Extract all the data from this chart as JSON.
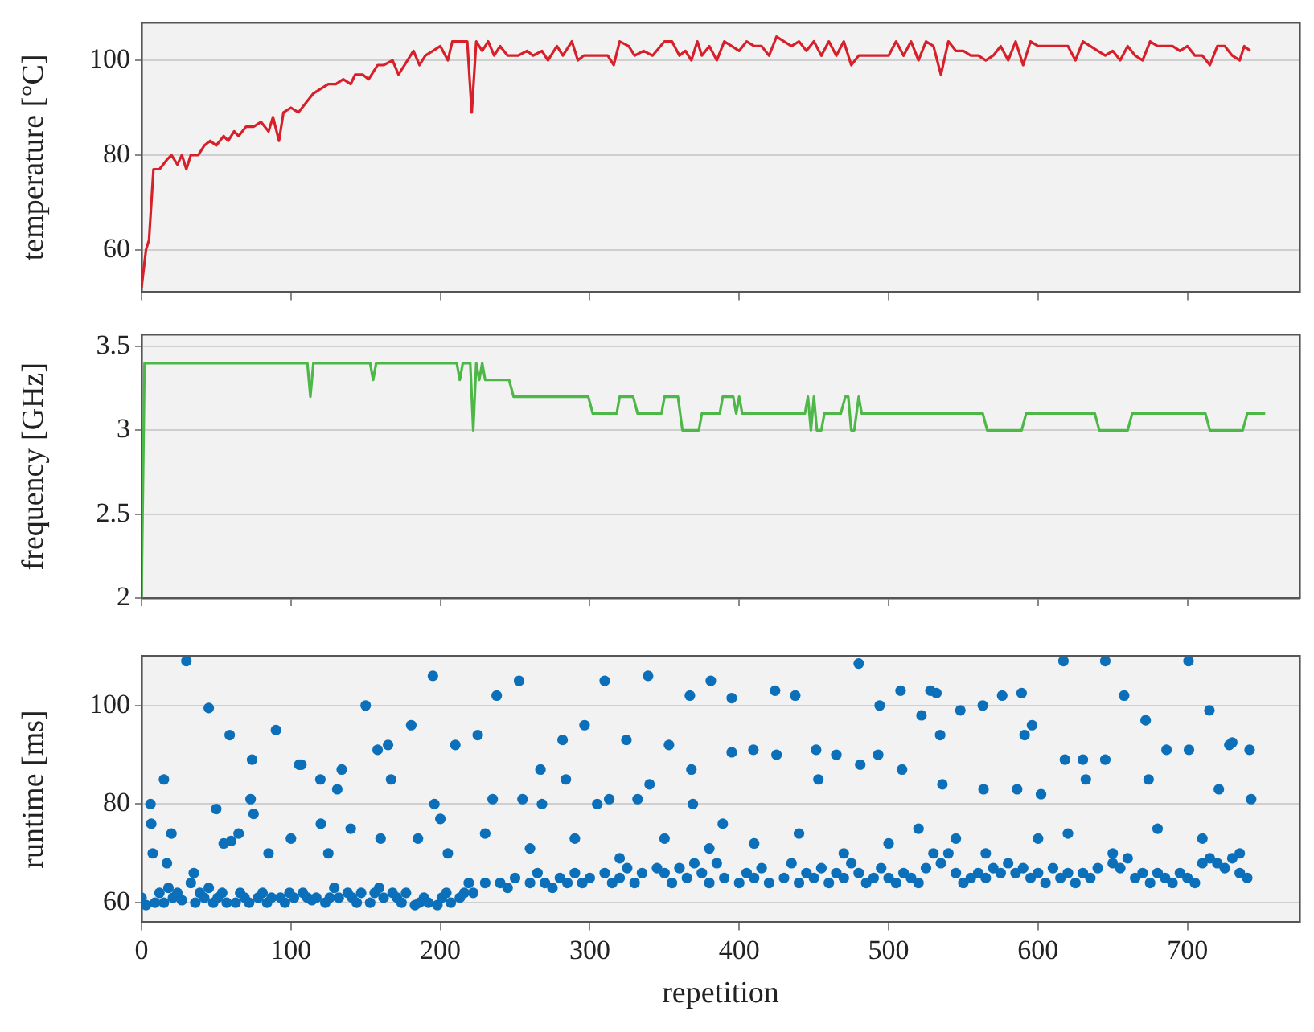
{
  "chart_data": [
    {
      "type": "line",
      "ylabel": "temperature [°C]",
      "xlim": [
        0,
        775
      ],
      "xticks": [
        0,
        100,
        200,
        300,
        400,
        500,
        600,
        700
      ],
      "ylim": [
        51,
        108
      ],
      "yticks": [
        60,
        80,
        100
      ],
      "grid": "y",
      "tick_labels": "y",
      "series": [
        {
          "color": "#d7202a",
          "x": [
            0,
            3,
            5,
            8,
            12,
            17,
            20,
            24,
            27,
            30,
            33,
            38,
            42,
            46,
            50,
            55,
            58,
            62,
            65,
            70,
            75,
            80,
            85,
            88,
            92,
            95,
            100,
            105,
            110,
            115,
            120,
            125,
            130,
            135,
            140,
            143,
            148,
            152,
            158,
            162,
            168,
            172,
            178,
            182,
            186,
            190,
            195,
            200,
            205,
            208,
            215,
            218,
            221,
            224,
            228,
            232,
            236,
            240,
            245,
            252,
            258,
            262,
            268,
            272,
            278,
            282,
            288,
            292,
            296,
            305,
            312,
            316,
            320,
            326,
            330,
            336,
            342,
            350,
            355,
            360,
            364,
            368,
            372,
            375,
            380,
            385,
            390,
            395,
            400,
            405,
            410,
            415,
            420,
            425,
            430,
            435,
            440,
            445,
            450,
            455,
            460,
            465,
            470,
            475,
            480,
            490,
            500,
            505,
            510,
            515,
            520,
            525,
            530,
            535,
            540,
            545,
            550,
            555,
            560,
            565,
            570,
            575,
            580,
            585,
            590,
            595,
            600,
            610,
            615,
            620,
            625,
            630,
            635,
            640,
            645,
            650,
            655,
            660,
            665,
            670,
            675,
            680,
            690,
            695,
            700,
            705,
            710,
            715,
            720,
            725,
            730,
            735,
            738,
            742
          ],
          "values": [
            52,
            60,
            62,
            77,
            77,
            79,
            80,
            78,
            80,
            77,
            80,
            80,
            82,
            83,
            82,
            84,
            83,
            85,
            84,
            86,
            86,
            87,
            85,
            88,
            83,
            89,
            90,
            89,
            91,
            93,
            94,
            95,
            95,
            96,
            95,
            97,
            97,
            96,
            99,
            99,
            100,
            97,
            100,
            102,
            99,
            101,
            102,
            103,
            100,
            104,
            104,
            104,
            89,
            104,
            102,
            104,
            101,
            103,
            101,
            101,
            102,
            101,
            102,
            100,
            103,
            101,
            104,
            100,
            101,
            101,
            101,
            99,
            104,
            103,
            101,
            102,
            101,
            104,
            104,
            101,
            102,
            100,
            104,
            101,
            103,
            100,
            104,
            103,
            102,
            104,
            103,
            103,
            101,
            105,
            104,
            103,
            104,
            102,
            104,
            101,
            104,
            101,
            104,
            99,
            101,
            101,
            101,
            104,
            101,
            104,
            100,
            104,
            103,
            97,
            104,
            102,
            102,
            101,
            101,
            100,
            101,
            103,
            100,
            104,
            99,
            104,
            103,
            103,
            103,
            103,
            100,
            104,
            103,
            102,
            101,
            102,
            100,
            103,
            101,
            100,
            104,
            103,
            103,
            102,
            103,
            101,
            101,
            99,
            103,
            103,
            101,
            100,
            103,
            102
          ]
        }
      ]
    },
    {
      "type": "line",
      "ylabel": "frequency [GHz]",
      "xlim": [
        0,
        775
      ],
      "xticks": [
        0,
        100,
        200,
        300,
        400,
        500,
        600,
        700
      ],
      "ylim": [
        2,
        3.57
      ],
      "yticks": [
        2,
        2.5,
        3,
        3.5
      ],
      "grid": "y",
      "tick_labels": "y",
      "series": [
        {
          "color": "#4db848",
          "x": [
            0,
            2,
            111,
            113,
            115,
            153,
            155,
            157,
            211,
            213,
            215,
            220,
            222,
            224,
            226,
            228,
            230,
            246,
            249,
            299,
            302,
            318,
            320,
            329,
            332,
            348,
            350,
            359,
            362,
            373,
            375,
            387,
            389,
            396,
            398,
            400,
            402,
            444,
            446,
            448,
            450,
            452,
            455,
            457,
            468,
            471,
            473,
            475,
            477,
            480,
            482,
            563,
            566,
            589,
            592,
            638,
            641,
            660,
            663,
            712,
            715,
            737,
            740,
            752
          ],
          "values": [
            2,
            3.4,
            3.4,
            3.2,
            3.4,
            3.4,
            3.3,
            3.4,
            3.4,
            3.3,
            3.4,
            3.4,
            3,
            3.4,
            3.3,
            3.4,
            3.3,
            3.3,
            3.2,
            3.2,
            3.1,
            3.1,
            3.2,
            3.2,
            3.1,
            3.1,
            3.2,
            3.2,
            3,
            3,
            3.1,
            3.1,
            3.2,
            3.2,
            3.1,
            3.2,
            3.1,
            3.1,
            3.2,
            3,
            3.2,
            3,
            3,
            3.1,
            3.1,
            3.2,
            3.2,
            3,
            3,
            3.2,
            3.1,
            3.1,
            3,
            3,
            3.1,
            3.1,
            3,
            3,
            3.1,
            3.1,
            3,
            3,
            3.1,
            3.1
          ]
        }
      ]
    },
    {
      "type": "scatter",
      "xlabel": "repetition",
      "ylabel": "runtime [ms]",
      "xlim": [
        0,
        775
      ],
      "xticks": [
        0,
        100,
        200,
        300,
        400,
        500,
        600,
        700
      ],
      "ylim": [
        56,
        110
      ],
      "yticks": [
        60,
        80,
        100
      ],
      "grid": "y",
      "marker": "circle",
      "series": [
        {
          "color": "#0b6fba",
          "x": [
            30,
            6,
            6.5,
            7.5,
            15,
            17,
            45,
            59,
            74,
            73,
            75,
            60,
            50,
            90,
            105.5,
            107,
            119.7,
            120,
            131,
            134,
            150,
            158,
            165,
            167,
            180.5,
            195,
            196,
            200,
            210,
            225,
            237.7,
            235,
            252.7,
            255,
            267,
            268,
            281.8,
            284,
            296.5,
            305,
            310,
            313,
            324.5,
            332,
            339,
            340,
            353,
            367,
            368,
            369,
            381,
            389,
            395,
            395,
            409.5,
            424,
            425,
            437.5,
            451.5,
            453,
            465,
            480,
            481,
            493,
            494,
            508,
            509,
            522,
            528,
            532,
            534.5,
            536,
            548,
            563,
            563.5,
            576,
            586,
            589,
            591,
            602,
            596,
            617,
            618,
            630,
            632,
            645,
            645,
            657.6,
            672,
            674,
            686,
            700.7,
            701,
            714.7,
            721,
            728,
            730,
            741.6,
            742.6,
            0,
            3,
            9,
            12,
            15,
            18,
            21,
            24,
            27,
            33,
            36,
            39,
            42,
            45,
            48,
            51,
            54,
            57,
            63,
            66,
            69,
            72,
            78,
            81,
            84,
            87,
            93,
            96,
            99,
            102,
            108,
            111,
            114,
            117,
            123,
            126,
            129,
            132,
            138,
            141,
            144,
            147,
            153,
            156,
            159,
            162,
            168,
            171,
            174,
            177,
            183,
            186,
            189,
            192,
            198,
            201,
            204,
            207,
            213,
            216,
            219,
            222,
            230,
            240,
            245,
            250,
            260,
            265,
            270,
            275,
            280,
            285,
            290,
            295,
            300,
            310,
            315,
            320,
            325,
            330,
            335,
            345,
            350,
            355,
            360,
            365,
            370,
            375,
            380,
            385,
            390,
            400,
            405,
            410,
            415,
            420,
            430,
            435,
            440,
            445,
            450,
            455,
            460,
            465,
            470,
            475,
            480,
            485,
            490,
            495,
            500,
            505,
            510,
            515,
            520,
            525,
            530,
            535,
            540,
            545,
            550,
            555,
            560,
            565,
            570,
            575,
            580,
            585,
            590,
            595,
            600,
            605,
            610,
            615,
            620,
            625,
            630,
            635,
            640,
            650,
            655,
            660,
            665,
            670,
            675,
            680,
            685,
            690,
            695,
            700,
            705,
            710,
            715,
            720,
            725,
            730,
            735,
            740,
            20,
            35,
            55,
            65,
            85,
            100,
            125,
            140,
            160,
            185,
            205,
            230,
            260,
            290,
            320,
            350,
            380,
            410,
            440,
            470,
            500,
            520,
            545,
            565,
            600,
            620,
            650,
            680,
            710,
            735
          ],
          "values": [
            109,
            80,
            76,
            70,
            85,
            68,
            99.5,
            94,
            89,
            81,
            78,
            72.5,
            79,
            95,
            88,
            88,
            85,
            76,
            83,
            87,
            100,
            91,
            92,
            85,
            96,
            106,
            80,
            77,
            92,
            94,
            102,
            81,
            105,
            81,
            87,
            80,
            93,
            85,
            96,
            80,
            105,
            81,
            93,
            81,
            106,
            84,
            92,
            102,
            87,
            80,
            105,
            76,
            101.5,
            90.5,
            91,
            103,
            90,
            102,
            91,
            85,
            90,
            108.5,
            88,
            90,
            100,
            103,
            87,
            98,
            103,
            102.5,
            94,
            84,
            99,
            100,
            83,
            102,
            83,
            102.5,
            94,
            82,
            96,
            109,
            89,
            89,
            85,
            109,
            89,
            102,
            97,
            85,
            91,
            109,
            91,
            99,
            83,
            92,
            92.5,
            91,
            81,
            61,
            59.5,
            60,
            62,
            60,
            63,
            61,
            62,
            60.5,
            64,
            60,
            62,
            61,
            63,
            60,
            61,
            62,
            60,
            60,
            62,
            61,
            60,
            61,
            62,
            60,
            61,
            61,
            60,
            62,
            61,
            62,
            61,
            60.5,
            61,
            60,
            61,
            63,
            61,
            62,
            61,
            60,
            62,
            60,
            62,
            63,
            61,
            62,
            61,
            60,
            62,
            59.5,
            60,
            61,
            60,
            59.5,
            61,
            62,
            60,
            61,
            62,
            64,
            62,
            64,
            64,
            63,
            65,
            64,
            66,
            64,
            63,
            65,
            64,
            66,
            64,
            65,
            66,
            64,
            65,
            67,
            64,
            66,
            67,
            66,
            64,
            67,
            65,
            68,
            66,
            64,
            68,
            65,
            64,
            66,
            65,
            67,
            64,
            65,
            68,
            64,
            66,
            65,
            67,
            64,
            66,
            65,
            68,
            66,
            64,
            65,
            67,
            65,
            64,
            66,
            65,
            64,
            67,
            70,
            68,
            70,
            66,
            64,
            65,
            66,
            65,
            67,
            66,
            68,
            66,
            67,
            65,
            66,
            64,
            67,
            65,
            66,
            64,
            66,
            65,
            67,
            68,
            67,
            69,
            65,
            66,
            64,
            66,
            65,
            64,
            66,
            65,
            64,
            68,
            69,
            68,
            67,
            69,
            66,
            65,
            74,
            66,
            72,
            74,
            70,
            73,
            70,
            75,
            73,
            73,
            70,
            74,
            71,
            73,
            69,
            73,
            71,
            72,
            74,
            70,
            72,
            75,
            73,
            70,
            73,
            74,
            70,
            75,
            73,
            70
          ]
        }
      ]
    }
  ]
}
